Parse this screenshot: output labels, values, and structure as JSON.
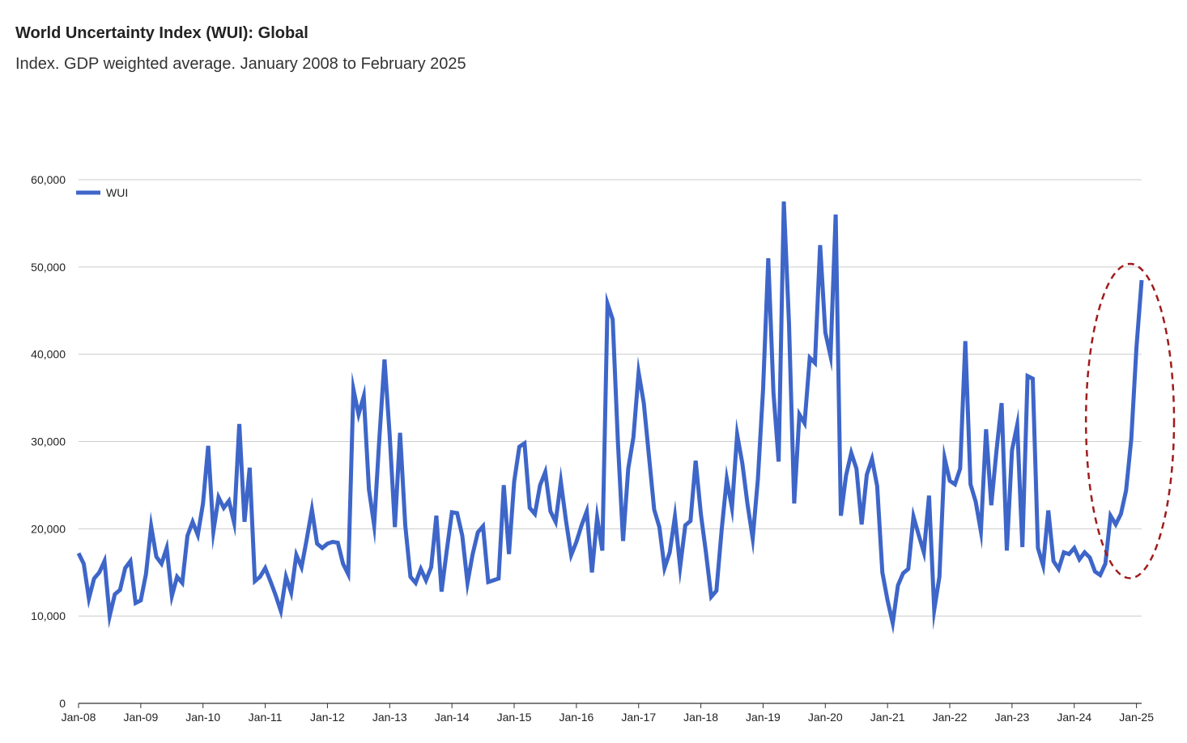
{
  "chart_data": {
    "type": "line",
    "title": "World Uncertainty Index (WUI): Global",
    "subtitle": "Index. GDP weighted average. January 2008 to February 2025",
    "xlabel": "",
    "ylabel": "",
    "ylim": [
      0,
      60000
    ],
    "yticks": [
      0,
      10000,
      20000,
      30000,
      40000,
      50000,
      60000
    ],
    "ytick_labels": [
      "0",
      "10,000",
      "20,000",
      "30,000",
      "40,000",
      "50,000",
      "60,000"
    ],
    "xticks": [
      "Jan-08",
      "Jan-09",
      "Jan-10",
      "Jan-11",
      "Jan-12",
      "Jan-13",
      "Jan-14",
      "Jan-15",
      "Jan-16",
      "Jan-17",
      "Jan-18",
      "Jan-19",
      "Jan-20",
      "Jan-21",
      "Jan-22",
      "Jan-23",
      "Jan-24",
      "Jan-25"
    ],
    "x_start": "Jan-08",
    "x_end": "Feb-25",
    "grid": true,
    "legend": "top-left",
    "highlight": "dashed ellipse around the final months (Jul-24 to Feb-25)",
    "series": [
      {
        "name": "WUI",
        "color": "#3e66c9",
        "values": [
          17200,
          16000,
          12000,
          14300,
          15000,
          16300,
          10000,
          12500,
          13000,
          15500,
          16300,
          11500,
          11800,
          14800,
          20300,
          16800,
          16000,
          17800,
          12300,
          14500,
          13800,
          19200,
          20800,
          19300,
          22900,
          29500,
          19700,
          23600,
          22400,
          23200,
          20700,
          32000,
          20800,
          27000,
          14000,
          14500,
          15500,
          14000,
          12400,
          10600,
          14500,
          12700,
          17000,
          15600,
          18800,
          22200,
          18300,
          17800,
          18300,
          18500,
          18400,
          16000,
          14800,
          36000,
          33100,
          35200,
          24500,
          20400,
          30300,
          39400,
          30700,
          20200,
          31000,
          20400,
          14500,
          13800,
          15400,
          14100,
          15600,
          21500,
          12800,
          17500,
          21900,
          21800,
          19200,
          13800,
          17100,
          19600,
          20300,
          13900,
          14100,
          14300,
          25000,
          17100,
          25400,
          29400,
          29800,
          22400,
          21700,
          25000,
          26500,
          22000,
          20800,
          25400,
          20900,
          17000,
          18500,
          20400,
          22000,
          15000,
          21300,
          17500,
          45800,
          44000,
          30000,
          18600,
          26900,
          30500,
          37900,
          34400,
          28300,
          22200,
          20200,
          15500,
          17300,
          21400,
          15600,
          20400,
          20900,
          27800,
          21700,
          17200,
          12200,
          12900,
          19800,
          25700,
          22400,
          30800,
          27500,
          22800,
          18900,
          25700,
          36000,
          51000,
          35600,
          27700,
          57500,
          43500,
          22900,
          33100,
          32100,
          39600,
          39000,
          52500,
          42500,
          39800,
          56000,
          21500,
          26100,
          28700,
          26900,
          20500,
          26200,
          28000,
          24900,
          15000,
          11800,
          9200,
          13500,
          14900,
          15400,
          21400,
          19300,
          17300,
          23800,
          10700,
          14500,
          28100,
          25500,
          25100,
          26900,
          41500,
          25100,
          23100,
          19700,
          31400,
          22700,
          28900,
          34400,
          17500,
          29000,
          31900,
          17900,
          37500,
          37200,
          17800,
          15800,
          22100,
          16300,
          15400,
          17300,
          17100,
          17800,
          16500,
          17300,
          16700,
          15100,
          14700,
          16000,
          21500,
          20500,
          21700,
          24400,
          30300,
          40800,
          48500
        ]
      }
    ]
  }
}
